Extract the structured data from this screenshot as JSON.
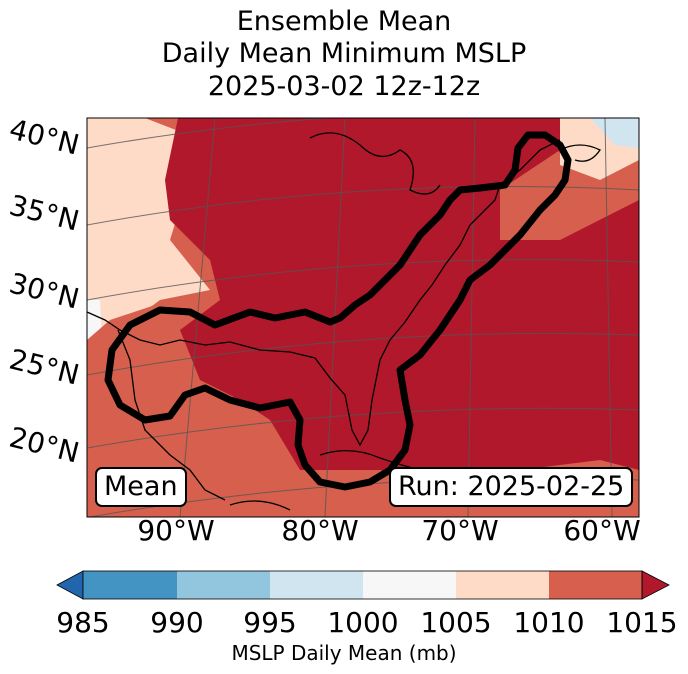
{
  "title": {
    "line1": "Ensemble Mean",
    "line2": "Daily Mean Minimum MSLP",
    "line3": "2025-03-02 12z-12z"
  },
  "map": {
    "lat_labels": [
      "40°N",
      "35°N",
      "30°N",
      "25°N",
      "20°N"
    ],
    "lon_labels": [
      "90°W",
      "80°W",
      "70°W",
      "60°W"
    ],
    "left_label": "Mean",
    "right_label": "Run: 2025-02-25",
    "contour": "thick black ensemble contour over eastern US and Gulf of Mexico"
  },
  "colorbar": {
    "label": "MSLP Daily Mean (mb)",
    "ticks": [
      "985",
      "990",
      "995",
      "1000",
      "1005",
      "1010",
      "1015"
    ],
    "colors": [
      "#2166ac",
      "#4393c3",
      "#92c5de",
      "#d1e5f0",
      "#f7f7f7",
      "#fddbc7",
      "#d6604d",
      "#b2182b"
    ]
  }
}
